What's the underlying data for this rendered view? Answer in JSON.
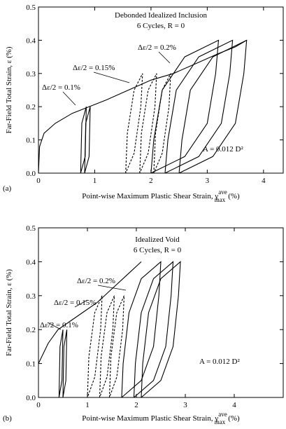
{
  "chart_data": [
    {
      "type": "line",
      "panel": "(a)",
      "title": "Debonded Idealized Inclusion",
      "subtitle": "6 Cycles, R = 0",
      "xlabel": "Point-wise Maximum Plastic Shear Strain, γ",
      "xlabel_sup": "ave",
      "xlabel_sub": "max",
      "xlabel_unit": "(%)",
      "ylabel": "Far-Field Total Strain, ε (%)",
      "annotations": [
        "Δε/2 = 0.2%",
        "Δε/2 = 0.15%",
        "Δε/2 = 0.1%",
        "A = 0.012 D²"
      ],
      "xlim": [
        0,
        4.35
      ],
      "xticks": [
        0,
        1,
        2,
        3,
        4
      ],
      "ylim": [
        0,
        0.5
      ],
      "yticks": [
        {
          "value": 0,
          "label": "0.0"
        },
        0.1,
        0.2,
        0.3,
        0.4,
        0.5
      ],
      "series": [
        {
          "color": "#000000",
          "dashed": false,
          "x": [
            0,
            0.02,
            0.1,
            0.3,
            0.6,
            0.9,
            1.2,
            1.6,
            2.0,
            2.4,
            2.8,
            3.2,
            3.5,
            3.7
          ],
          "values": [
            0,
            0.08,
            0.12,
            0.15,
            0.18,
            0.2,
            0.22,
            0.25,
            0.28,
            0.3,
            0.33,
            0.36,
            0.38,
            0.4
          ]
        },
        {
          "color": "#000000",
          "dashed": false,
          "x": [
            0.75,
            0.77,
            0.85,
            0.83,
            0.75
          ],
          "values": [
            0,
            0.15,
            0.2,
            0.05,
            0
          ]
        },
        {
          "color": "#000000",
          "dashed": false,
          "x": [
            0.82,
            0.84,
            0.92,
            0.9,
            0.82
          ],
          "values": [
            0,
            0.15,
            0.2,
            0.05,
            0
          ]
        },
        {
          "color": "#000000",
          "dashed": true,
          "x": [
            1.55,
            1.58,
            1.7,
            1.85,
            1.82,
            1.7,
            1.55
          ],
          "values": [
            0,
            0.12,
            0.25,
            0.3,
            0.2,
            0.06,
            0
          ]
        },
        {
          "color": "#000000",
          "dashed": true,
          "x": [
            1.8,
            1.83,
            1.95,
            2.1,
            2.07,
            1.95,
            1.8
          ],
          "values": [
            0,
            0.12,
            0.25,
            0.3,
            0.2,
            0.06,
            0
          ]
        },
        {
          "color": "#000000",
          "dashed": true,
          "x": [
            2.05,
            2.08,
            2.2,
            2.35,
            2.32,
            2.2,
            2.05
          ],
          "values": [
            0,
            0.12,
            0.25,
            0.3,
            0.2,
            0.06,
            0
          ]
        },
        {
          "color": "#000000",
          "dashed": false,
          "x": [
            2.0,
            2.05,
            2.2,
            2.6,
            3.2,
            3.15,
            3.0,
            2.6,
            2.0
          ],
          "values": [
            0,
            0.1,
            0.25,
            0.35,
            0.4,
            0.3,
            0.15,
            0.05,
            0
          ]
        },
        {
          "color": "#000000",
          "dashed": false,
          "x": [
            2.25,
            2.3,
            2.45,
            2.85,
            3.45,
            3.4,
            3.25,
            2.85,
            2.25
          ],
          "values": [
            0,
            0.1,
            0.25,
            0.35,
            0.4,
            0.3,
            0.15,
            0.05,
            0
          ]
        },
        {
          "color": "#000000",
          "dashed": false,
          "x": [
            2.5,
            2.55,
            2.7,
            3.1,
            3.7,
            3.65,
            3.5,
            3.1,
            2.5
          ],
          "values": [
            0,
            0.1,
            0.25,
            0.35,
            0.4,
            0.3,
            0.15,
            0.05,
            0
          ]
        }
      ]
    },
    {
      "type": "line",
      "panel": "(b)",
      "title": "Idealized Void",
      "subtitle": "6 Cycles, R = 0",
      "xlabel": "Point-wise Maximum Plastic Shear Strain, γ",
      "xlabel_sup": "ave",
      "xlabel_sub": "max",
      "xlabel_unit": "(%)",
      "ylabel": "Far-Field Total Strain, ε (%)",
      "annotations": [
        "Δε/2 = 0.2%",
        "Δε/2 = 0.15%",
        "Δε/2 = 0.1%",
        "A = 0.012 D²"
      ],
      "xlim": [
        0,
        5
      ],
      "xticks": [
        0,
        1,
        2,
        3,
        4
      ],
      "ylim": [
        0,
        0.5
      ],
      "yticks": [
        {
          "value": 0,
          "label": "0.0"
        },
        0.1,
        0.2,
        0.3,
        0.4,
        0.5
      ],
      "series": [
        {
          "color": "#000000",
          "dashed": false,
          "x": [
            0,
            0.2,
            0.4,
            0.6,
            0.9,
            1.2,
            1.5,
            1.8,
            2.1
          ],
          "values": [
            0.1,
            0.16,
            0.2,
            0.22,
            0.25,
            0.28,
            0.32,
            0.36,
            0.4
          ]
        },
        {
          "color": "#000000",
          "dashed": false,
          "x": [
            0.42,
            0.44,
            0.5,
            0.48,
            0.42
          ],
          "values": [
            0,
            0.15,
            0.2,
            0.05,
            0
          ]
        },
        {
          "color": "#000000",
          "dashed": false,
          "x": [
            0.5,
            0.52,
            0.58,
            0.56,
            0.5
          ],
          "values": [
            0,
            0.15,
            0.2,
            0.05,
            0
          ]
        },
        {
          "color": "#000000",
          "dashed": true,
          "x": [
            1.0,
            1.03,
            1.15,
            1.3,
            1.27,
            1.15,
            1.0
          ],
          "values": [
            0,
            0.12,
            0.25,
            0.3,
            0.2,
            0.06,
            0
          ]
        },
        {
          "color": "#000000",
          "dashed": true,
          "x": [
            1.25,
            1.28,
            1.4,
            1.55,
            1.52,
            1.4,
            1.25
          ],
          "values": [
            0,
            0.12,
            0.25,
            0.3,
            0.2,
            0.06,
            0
          ]
        },
        {
          "color": "#000000",
          "dashed": true,
          "x": [
            1.45,
            1.48,
            1.6,
            1.75,
            1.72,
            1.6,
            1.45
          ],
          "values": [
            0,
            0.12,
            0.25,
            0.3,
            0.2,
            0.06,
            0
          ]
        },
        {
          "color": "#000000",
          "dashed": false,
          "x": [
            1.7,
            1.73,
            1.85,
            2.1,
            2.5,
            2.46,
            2.35,
            2.1,
            1.7
          ],
          "values": [
            0,
            0.1,
            0.25,
            0.35,
            0.4,
            0.3,
            0.15,
            0.05,
            0
          ]
        },
        {
          "color": "#000000",
          "dashed": false,
          "x": [
            1.95,
            1.98,
            2.1,
            2.35,
            2.75,
            2.71,
            2.6,
            2.35,
            1.95
          ],
          "values": [
            0,
            0.1,
            0.25,
            0.35,
            0.4,
            0.3,
            0.15,
            0.05,
            0
          ]
        },
        {
          "color": "#000000",
          "dashed": false,
          "x": [
            2.1,
            2.13,
            2.25,
            2.5,
            2.9,
            2.86,
            2.75,
            2.5,
            2.1
          ],
          "values": [
            0,
            0.1,
            0.25,
            0.35,
            0.4,
            0.3,
            0.15,
            0.05,
            0
          ]
        }
      ]
    }
  ]
}
